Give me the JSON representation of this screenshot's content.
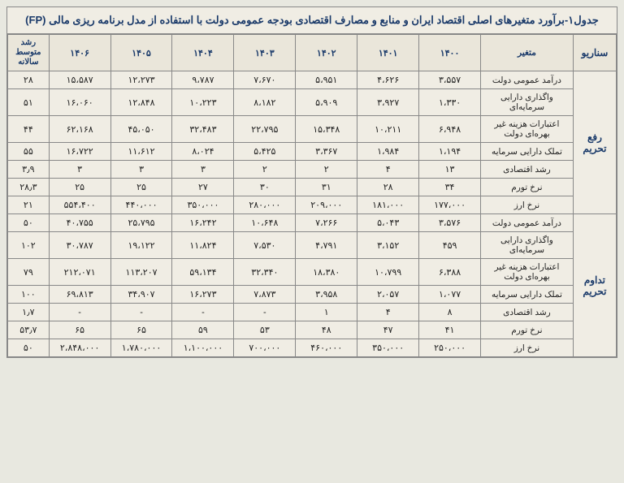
{
  "title": "جدول۱-برآورد متغیرهای اصلی اقتصاد ایران و منابع و مصارف اقتصادی بودجه عمومی دولت با استفاده از مدل برنامه ریزی مالی (FP)",
  "headers": {
    "scenario": "سناریو",
    "variable": "متغیر",
    "years": [
      "۱۴۰۰",
      "۱۴۰۱",
      "۱۴۰۲",
      "۱۴۰۳",
      "۱۴۰۴",
      "۱۴۰۵",
      "۱۴۰۶"
    ],
    "growth": "رشد متوسط سالانه"
  },
  "scenarios": [
    {
      "name": "رفع تحریم",
      "rows": [
        {
          "var": "درآمد عمومی دولت",
          "vals": [
            "۳،۵۵۷",
            "۴،۶۲۶",
            "۵،۹۵۱",
            "۷،۶۷۰",
            "۹،۷۸۷",
            "۱۲،۲۷۳",
            "۱۵،۵۸۷"
          ],
          "g": "۲۸"
        },
        {
          "var": "واگذاری دارایی سرمایه‌ای",
          "vals": [
            "۱،۳۳۰",
            "۳،۹۲۷",
            "۵،۹۰۹",
            "۸،۱۸۲",
            "۱۰،۲۲۳",
            "۱۲،۸۴۸",
            "۱۶،۰۶۰"
          ],
          "g": "۵۱"
        },
        {
          "var": "اعتبارات هزینه غیر بهره‌ای دولت",
          "vals": [
            "۶،۹۴۸",
            "۱۰،۲۱۱",
            "۱۵،۳۴۸",
            "۲۲،۷۹۵",
            "۳۲،۴۸۳",
            "۴۵،۰۵۰",
            "۶۲،۱۶۸"
          ],
          "g": "۴۴"
        },
        {
          "var": "تملک دارایی سرمایه",
          "vals": [
            "۱،۱۹۴",
            "۱،۹۸۴",
            "۳،۳۶۷",
            "۵،۴۲۵",
            "۸،۰۲۴",
            "۱۱،۶۱۲",
            "۱۶،۷۲۲"
          ],
          "g": "۵۵"
        },
        {
          "var": "رشد اقتصادی",
          "vals": [
            "۱۳",
            "۴",
            "۲",
            "۲",
            "۳",
            "۳",
            "۳"
          ],
          "g": "۳٫۹"
        },
        {
          "var": "نرخ تورم",
          "vals": [
            "۳۴",
            "۲۸",
            "۳۱",
            "۳۰",
            "۲۷",
            "۲۵",
            "۲۵"
          ],
          "g": "۲۸٫۳"
        },
        {
          "var": "نرخ ارز",
          "vals": [
            "۱۷۷،۰۰۰",
            "۱۸۱،۰۰۰",
            "۲۰۹،۰۰۰",
            "۲۸۰،۰۰۰",
            "۳۵۰،۰۰۰",
            "۴۴۰،۰۰۰",
            "۵۵۴،۴۰۰"
          ],
          "g": "۲۱"
        }
      ]
    },
    {
      "name": "تداوم تحریم",
      "rows": [
        {
          "var": "درآمد عمومی دولت",
          "vals": [
            "۳،۵۷۶",
            "۵،۰۴۳",
            "۷،۲۶۶",
            "۱۰،۶۴۸",
            "۱۶،۲۴۲",
            "۲۵،۷۹۵",
            "۴۰،۷۵۵"
          ],
          "g": "۵۰"
        },
        {
          "var": "واگذاری دارایی سرمایه‌ای",
          "vals": [
            "۴۵۹",
            "۳،۱۵۲",
            "۴،۷۹۱",
            "۷،۵۳۰",
            "۱۱،۸۲۴",
            "۱۹،۱۲۲",
            "۳۰،۷۸۷"
          ],
          "g": "۱۰۲"
        },
        {
          "var": "اعتبارات هزینه غیر بهره‌ای دولت",
          "vals": [
            "۶،۳۸۸",
            "۱۰،۷۹۹",
            "۱۸،۳۸۰",
            "۳۲،۳۴۰",
            "۵۹،۱۳۴",
            "۱۱۳،۲۰۷",
            "۲۱۲،۰۷۱"
          ],
          "g": "۷۹"
        },
        {
          "var": "تملک دارایی سرمایه",
          "vals": [
            "۱،۰۷۷",
            "۲،۰۵۷",
            "۳،۹۵۸",
            "۷،۸۷۳",
            "۱۶،۲۷۳",
            "۳۴،۹۰۷",
            "۶۹،۸۱۳"
          ],
          "g": "۱۰۰"
        },
        {
          "var": "رشد اقتصادی",
          "vals": [
            "۸",
            "۴",
            "۱",
            "-",
            "-",
            "-",
            "-"
          ],
          "g": "۱٫۷"
        },
        {
          "var": "نرخ تورم",
          "vals": [
            "۴۱",
            "۴۷",
            "۴۸",
            "۵۳",
            "۵۹",
            "۶۵",
            "۶۵"
          ],
          "g": "۵۳٫۷"
        },
        {
          "var": "نرخ ارز",
          "vals": [
            "۲۵۰،۰۰۰",
            "۳۵۰،۰۰۰",
            "۴۶۰،۰۰۰",
            "۷۰۰،۰۰۰",
            "۱،۱۰۰،۰۰۰",
            "۱،۷۸۰،۰۰۰",
            "۲،۸۴۸،۰۰۰"
          ],
          "g": "۵۰"
        }
      ]
    }
  ]
}
